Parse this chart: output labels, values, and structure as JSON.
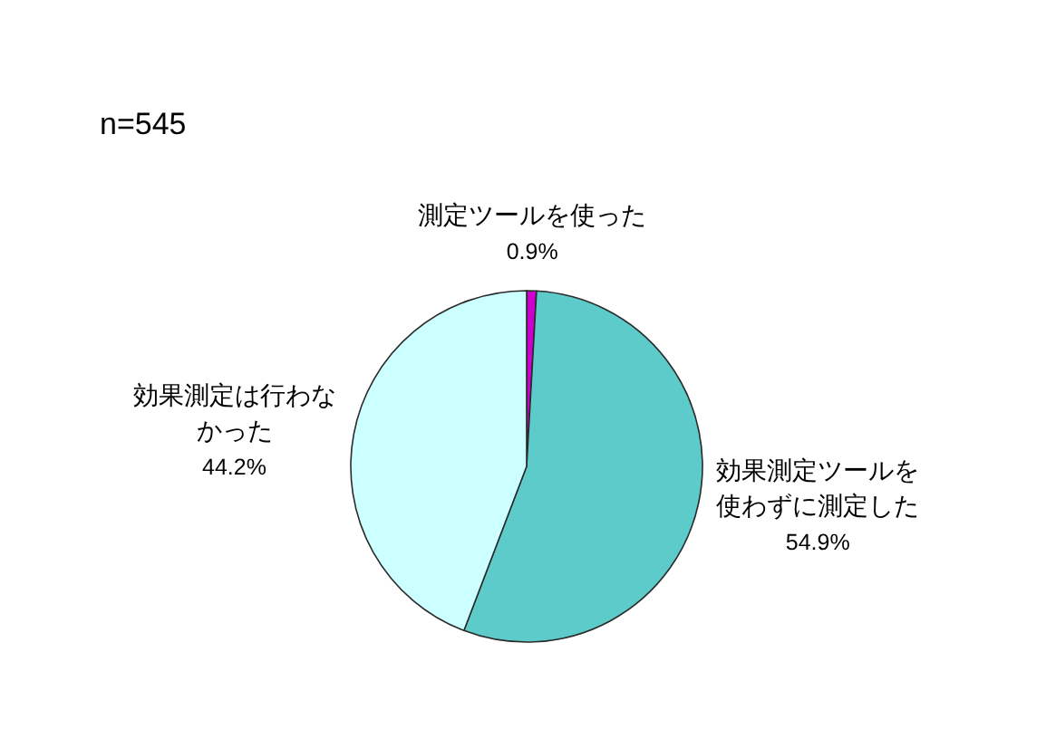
{
  "chart_data": {
    "type": "pie",
    "title": "n=545",
    "categories": [
      "測定ツールを使った",
      "効果測定ツールを使わずに測定した",
      "効果測定は行わなかった"
    ],
    "values": [
      0.9,
      54.9,
      44.2
    ],
    "colors": [
      "#cc00cc",
      "#5ecbcb",
      "#ccffff"
    ],
    "value_labels": [
      "0.9%",
      "54.9%",
      "44.2%"
    ]
  }
}
